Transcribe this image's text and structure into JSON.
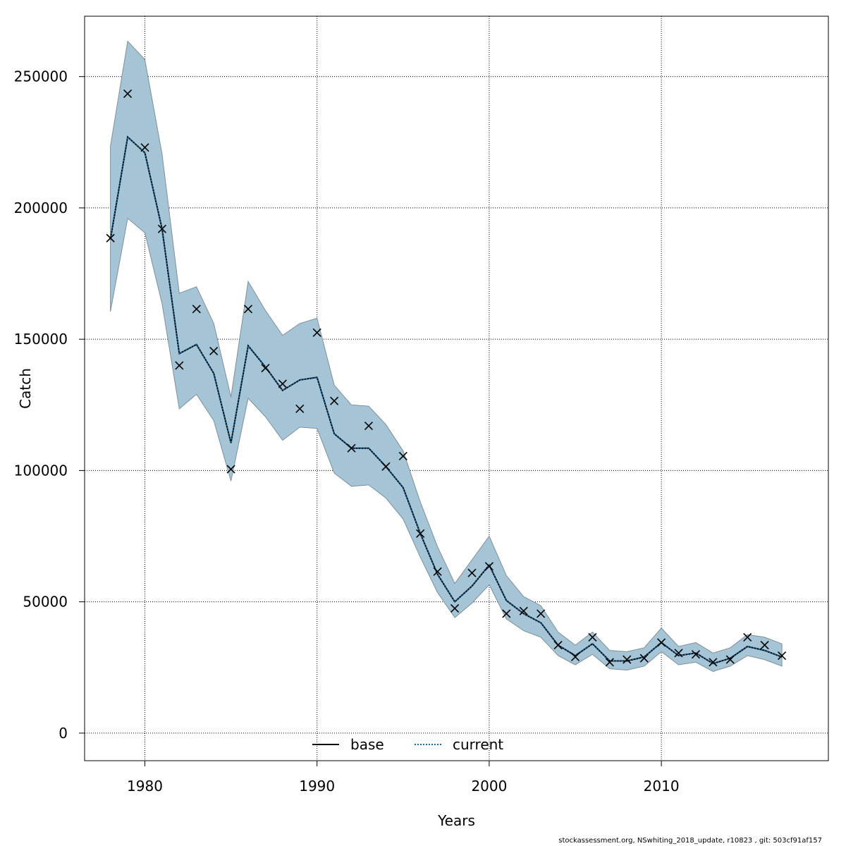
{
  "chart_data": {
    "type": "line",
    "xlabel": "Years",
    "ylabel": "Catch",
    "xlim": [
      1976.5,
      2019.7
    ],
    "ylim": [
      -10500,
      273000
    ],
    "xticks": [
      1980,
      1990,
      2000,
      2010
    ],
    "yticks": [
      0,
      50000,
      100000,
      150000,
      200000,
      250000
    ],
    "grid": true,
    "legend_position": "bottom-center",
    "x": [
      1978,
      1979,
      1980,
      1981,
      1982,
      1983,
      1984,
      1985,
      1986,
      1987,
      1988,
      1989,
      1990,
      1991,
      1992,
      1993,
      1994,
      1995,
      1996,
      1997,
      1998,
      1999,
      2000,
      2001,
      2002,
      2003,
      2004,
      2005,
      2006,
      2007,
      2008,
      2009,
      2010,
      2011,
      2012,
      2013,
      2014,
      2015,
      2016,
      2017
    ],
    "band": {
      "upper": [
        223500,
        263500,
        256500,
        220500,
        167500,
        170000,
        156000,
        128000,
        172000,
        161000,
        151500,
        156000,
        158000,
        132500,
        125000,
        124500,
        117500,
        107500,
        88000,
        71000,
        57000,
        66000,
        75000,
        60000,
        52000,
        48500,
        38500,
        33500,
        38500,
        31500,
        31000,
        32500,
        40000,
        33000,
        34500,
        30500,
        32500,
        37500,
        36500,
        34000
      ],
      "lower": [
        160500,
        196000,
        190500,
        163500,
        123500,
        129000,
        119000,
        96000,
        127500,
        120500,
        111500,
        116500,
        116000,
        99000,
        94000,
        94500,
        89500,
        81500,
        67000,
        53500,
        44000,
        49500,
        56500,
        43500,
        39000,
        36500,
        29500,
        26000,
        30000,
        24500,
        24000,
        25500,
        31000,
        26000,
        27000,
        23500,
        25500,
        29500,
        28000,
        25500
      ]
    },
    "series": [
      {
        "name": "base",
        "color": "#000000",
        "values": [
          188000,
          227000,
          221000,
          192000,
          144500,
          148000,
          137000,
          110500,
          147500,
          139500,
          130500,
          134500,
          135500,
          114000,
          108500,
          108500,
          101500,
          93500,
          76000,
          60500,
          50000,
          56000,
          64000,
          50500,
          45500,
          42000,
          33500,
          29500,
          34000,
          27500,
          27500,
          29000,
          34500,
          29500,
          30500,
          26500,
          28500,
          33000,
          31500,
          29000
        ]
      },
      {
        "name": "current",
        "color": "#1a6aa0",
        "values": [
          188000,
          227000,
          221000,
          192000,
          144500,
          148000,
          137000,
          110500,
          147500,
          139500,
          130500,
          134500,
          135500,
          114000,
          108500,
          108500,
          101500,
          93500,
          76000,
          60500,
          50000,
          56000,
          64000,
          50500,
          45500,
          42000,
          33500,
          29500,
          34000,
          27500,
          27500,
          29000,
          34500,
          29500,
          30500,
          26500,
          28500,
          33000,
          31500,
          29000
        ]
      }
    ],
    "observed": [
      188500,
      243500,
      223000,
      192000,
      140000,
      161500,
      145500,
      100500,
      161500,
      139000,
      133000,
      123500,
      152500,
      126500,
      108500,
      117000,
      101500,
      105500,
      76000,
      61500,
      47500,
      61000,
      63500,
      45500,
      46500,
      45500,
      33500,
      29000,
      36500,
      27000,
      28000,
      28500,
      34500,
      30500,
      30000,
      27000,
      28000,
      36500,
      33500,
      29500
    ],
    "colors": {
      "band_fill": "#a5c5d6",
      "band_edge": "#7f8f99",
      "grid": "#000000",
      "axis": "#000000",
      "marker": "#000000"
    }
  },
  "footer": "stockassessment.org, NSwhiting_2018_update, r10823 , git: 503cf91af157"
}
